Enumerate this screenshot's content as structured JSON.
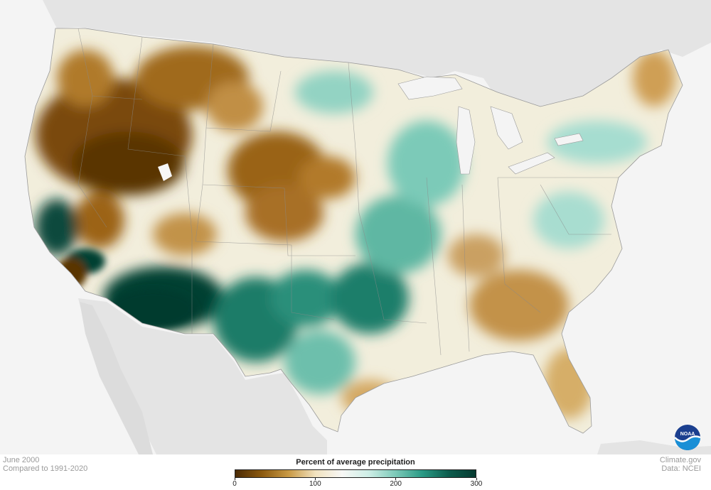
{
  "map": {
    "period": "June 2000",
    "baseline": "Compared to 1991-2020",
    "site": "Climate.gov",
    "source": "Data: NCEI",
    "logo_text": "NOAA"
  },
  "legend": {
    "title": "Percent of average precipitation",
    "ticks": [
      "0",
      "100",
      "200",
      "300"
    ],
    "colors": [
      "#4a2a05",
      "#8c5a0f",
      "#c99a45",
      "#f1e2bf",
      "#f7f7f5",
      "#cdeee6",
      "#7cc9b8",
      "#2a9a85",
      "#0d5c4d",
      "#053a30"
    ]
  },
  "colors": {
    "dry_extreme": "#5a3506",
    "dry": "#a06b1c",
    "dry_light": "#dcb66d",
    "neutral": "#f6f3ea",
    "wet_light": "#a9dfd2",
    "wet": "#3aa48e",
    "wet_extreme": "#053f33",
    "land_outside": "#e2e2e2",
    "water": "#f4f4f4"
  }
}
